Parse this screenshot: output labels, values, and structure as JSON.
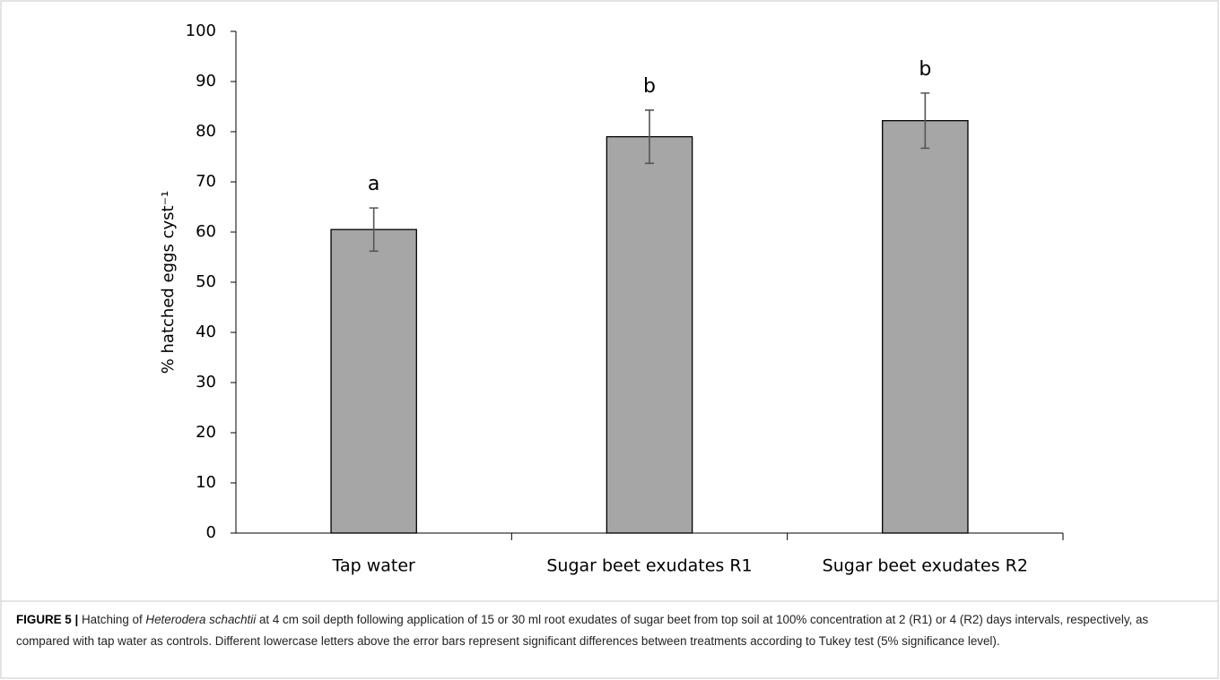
{
  "chart_data": {
    "type": "bar",
    "y_label": "% hatched eggs cyst⁻¹",
    "categories": [
      "Tap water",
      "Sugar beet exudates R1",
      "Sugar beet exudates R2"
    ],
    "values": [
      60.5,
      79,
      82.2
    ],
    "errors": [
      4.3,
      5.3,
      5.5
    ],
    "annotations": [
      "a",
      "b",
      "b"
    ],
    "color": "#a6a6a6",
    "ylim": [
      0,
      100
    ],
    "yticks": [
      0,
      10,
      20,
      30,
      40,
      50,
      60,
      70,
      80,
      90,
      100
    ],
    "grid": false,
    "caption": {
      "label": "FIGURE 5 |",
      "text_1": " Hatching of ",
      "species": "Heterodera schachtii",
      "text_2": " at 4 cm soil depth following application of 15 or 30 ml root exudates of sugar beet from top soil at 100% concentration at 2 (R1) or 4 (R2) days intervals, respectively, as compared with tap water as controls. Different lowercase letters above the error bars represent significant differences between treatments according to Tukey test (5% significance level)."
    }
  }
}
